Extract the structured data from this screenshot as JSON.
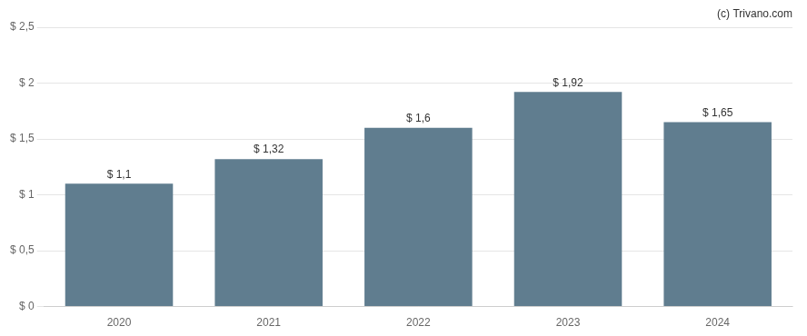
{
  "chart_data": {
    "type": "bar",
    "annotations": [
      "(c) Trivano.com"
    ],
    "categories": [
      "2020",
      "2021",
      "2022",
      "2023",
      "2024"
    ],
    "values": [
      1.1,
      1.32,
      1.6,
      1.92,
      1.65
    ],
    "value_labels": [
      "$ 1,1",
      "$ 1,32",
      "$ 1,6",
      "$ 1,92",
      "$ 1,65"
    ],
    "color": "#607d8f",
    "ylim": [
      0,
      2.5
    ],
    "yticks": [
      {
        "value": 0,
        "label": "$ 0"
      },
      {
        "value": 0.5,
        "label": "$ 0,5"
      },
      {
        "value": 1.0,
        "label": "$ 1"
      },
      {
        "value": 1.5,
        "label": "$ 1,5"
      },
      {
        "value": 2.0,
        "label": "$ 2"
      },
      {
        "value": 2.5,
        "label": "$ 2,5"
      }
    ],
    "grid": true,
    "data_labels": true
  }
}
